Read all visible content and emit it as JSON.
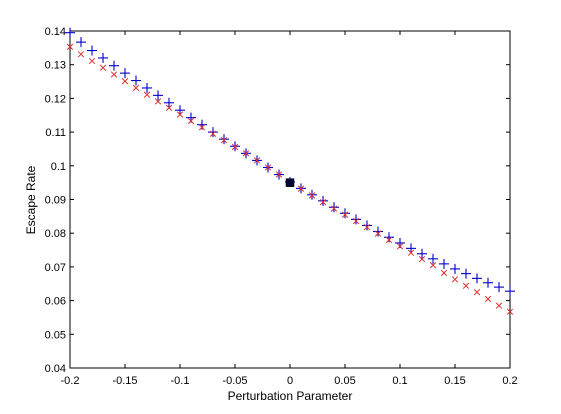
{
  "chart_data": {
    "type": "scatter",
    "title": "",
    "xlabel": "Perturbation Parameter",
    "ylabel": "Escape Rate",
    "xlim": [
      -0.2,
      0.2
    ],
    "ylim": [
      0.04,
      0.14
    ],
    "xticks": [
      "-0.2",
      "-0.15",
      "-0.1",
      "-0.05",
      "0",
      "0.05",
      "0.1",
      "0.15",
      "0.2"
    ],
    "yticks": [
      "0.04",
      "0.05",
      "0.06",
      "0.07",
      "0.08",
      "0.09",
      "0.1",
      "0.11",
      "0.12",
      "0.13",
      "0.14"
    ],
    "grid": false,
    "legend": "none",
    "x": [
      -0.2,
      -0.19,
      -0.18,
      -0.17,
      -0.16,
      -0.15,
      -0.14,
      -0.13,
      -0.12,
      -0.11,
      -0.1,
      -0.09,
      -0.08,
      -0.07,
      -0.06,
      -0.05,
      -0.04,
      -0.03,
      -0.02,
      -0.01,
      0,
      0.01,
      0.02,
      0.03,
      0.04,
      0.05,
      0.06,
      0.07,
      0.08,
      0.09,
      0.1,
      0.11,
      0.12,
      0.13,
      0.14,
      0.15,
      0.16,
      0.17,
      0.18,
      0.19,
      0.2
    ],
    "series": [
      {
        "marker": "plus",
        "color": "#0000cc",
        "values": [
          0.1395,
          0.1367,
          0.1342,
          0.132,
          0.1297,
          0.1275,
          0.1253,
          0.1231,
          0.1209,
          0.1187,
          0.1165,
          0.1143,
          0.1122,
          0.11,
          0.1079,
          0.1058,
          0.1037,
          0.1016,
          0.0995,
          0.0974,
          0.0952,
          0.0933,
          0.0914,
          0.0896,
          0.0877,
          0.0859,
          0.0841,
          0.0823,
          0.0805,
          0.0788,
          0.0771,
          0.0755,
          0.0739,
          0.0724,
          0.0709,
          0.0694,
          0.068,
          0.0666,
          0.0653,
          0.064,
          0.0628
        ]
      },
      {
        "marker": "x",
        "color": "#e03030",
        "values": [
          0.1353,
          0.1331,
          0.1311,
          0.1291,
          0.1271,
          0.1251,
          0.1231,
          0.1211,
          0.1191,
          0.1172,
          0.1152,
          0.1133,
          0.1114,
          0.1095,
          0.1076,
          0.1056,
          0.1037,
          0.1016,
          0.0995,
          0.0974,
          0.0952,
          0.0932,
          0.0912,
          0.0892,
          0.0873,
          0.0855,
          0.0836,
          0.0818,
          0.0799,
          0.078,
          0.0761,
          0.0742,
          0.0723,
          0.0705,
          0.0682,
          0.0663,
          0.0644,
          0.0625,
          0.0605,
          0.0585,
          0.0567
        ]
      }
    ],
    "highlight": {
      "x": 0,
      "y": 0.095,
      "marker": "square",
      "color": "#000033"
    }
  }
}
